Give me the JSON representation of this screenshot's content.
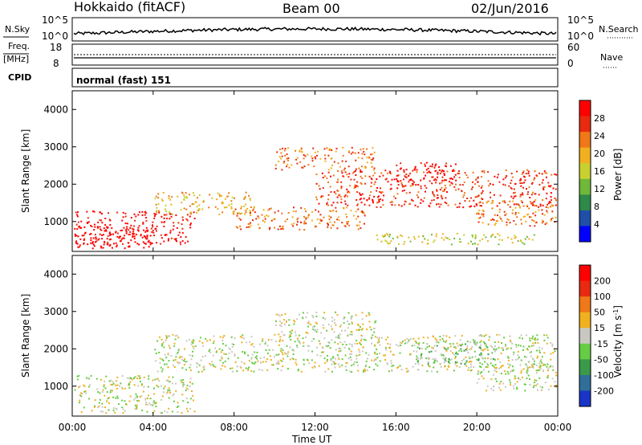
{
  "header": {
    "radar": "Hokkaido (fitACF)",
    "beam": "Beam 00",
    "date": "02/Jun/2016"
  },
  "top_panels": {
    "nsky_label": "N.Sky",
    "nsky_ticks": [
      "10^5",
      "10^0"
    ],
    "nsearch_label": "N.Search",
    "nsearch_ticks": [
      "10^5",
      "10^0"
    ],
    "freq_label": "Freq.",
    "freq_unit": "[MHz]",
    "freq_ticks": [
      "18",
      "8"
    ],
    "nave_label": "Nave",
    "nave_ticks": [
      "60",
      "0"
    ],
    "cpid_label": "CPID",
    "cpid_value": "normal (fast) 151"
  },
  "chart_data": [
    {
      "type": "heatmap",
      "name": "power",
      "ylabel": "Slant Range [km]",
      "yticks": [
        "4000",
        "3000",
        "2000",
        "1000"
      ],
      "ylim": [
        200,
        4500
      ],
      "colorbar_label": "Power [dB]",
      "colorbar_ticks": [
        "28",
        "24",
        "20",
        "16",
        "12",
        "8",
        "4"
      ],
      "colors": [
        "#0000ff",
        "#1f4fa8",
        "#2f8a4a",
        "#6fb83a",
        "#c8d030",
        "#f0b020",
        "#f07818",
        "#e82a10",
        "#ff0000"
      ],
      "regions": [
        {
          "t": [
            0.0,
            6.0
          ],
          "r": [
            400,
            1300
          ],
          "level": 8
        },
        {
          "t": [
            0.0,
            4.0
          ],
          "r": [
            300,
            900
          ],
          "level": 9
        },
        {
          "t": [
            4.0,
            9.0
          ],
          "r": [
            1200,
            1800
          ],
          "level": 5
        },
        {
          "t": [
            8.0,
            14.5
          ],
          "r": [
            800,
            1400
          ],
          "level": 6
        },
        {
          "t": [
            10.0,
            15.0
          ],
          "r": [
            2400,
            3000
          ],
          "level": 6
        },
        {
          "t": [
            12.0,
            24.0
          ],
          "r": [
            1400,
            2400
          ],
          "level": 7
        },
        {
          "t": [
            16.0,
            19.0
          ],
          "r": [
            2000,
            2600
          ],
          "level": 8
        },
        {
          "t": [
            20.0,
            24.0
          ],
          "r": [
            900,
            1600
          ],
          "level": 6
        },
        {
          "t": [
            15.0,
            23.0
          ],
          "r": [
            400,
            700
          ],
          "level": 4
        }
      ]
    },
    {
      "type": "heatmap",
      "name": "velocity",
      "ylabel": "Slant Range [km]",
      "yticks": [
        "4000",
        "3000",
        "2000",
        "1000"
      ],
      "ylim": [
        200,
        4500
      ],
      "colorbar_label": "Velocity [m s^-1]",
      "colorbar_ticks": [
        "200",
        "100",
        "50",
        "15",
        "-15",
        "-50",
        "-100",
        "-200"
      ],
      "colors": [
        "#1a34c8",
        "#2f6f9a",
        "#3a9a4a",
        "#66cc44",
        "#c8c8c0",
        "#f0b020",
        "#f07818",
        "#e82a10",
        "#ff0000"
      ],
      "regions": [
        {
          "t": [
            0.0,
            6.0
          ],
          "r": [
            300,
            1300
          ],
          "level": 4
        },
        {
          "t": [
            4.0,
            24.0
          ],
          "r": [
            1400,
            2400
          ],
          "level": 4
        },
        {
          "t": [
            10.0,
            15.0
          ],
          "r": [
            2400,
            3000
          ],
          "level": 4
        },
        {
          "t": [
            17.0,
            21.0
          ],
          "r": [
            1600,
            2200
          ],
          "level": 3
        },
        {
          "t": [
            20.0,
            24.0
          ],
          "r": [
            900,
            1600
          ],
          "level": 4
        }
      ]
    }
  ],
  "xaxis": {
    "ticks": [
      "00:00",
      "04:00",
      "08:00",
      "12:00",
      "16:00",
      "20:00",
      "00:00"
    ],
    "label": "Time UT"
  }
}
